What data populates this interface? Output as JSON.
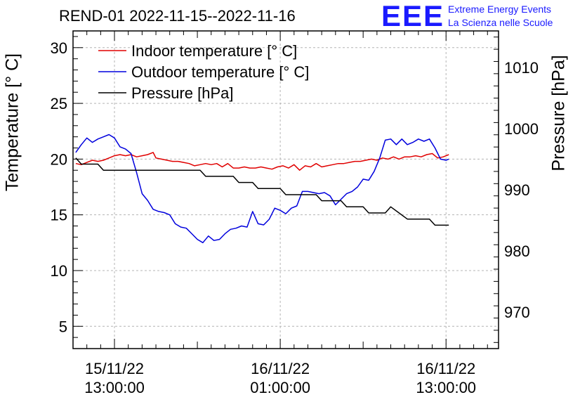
{
  "title": "REND-01 2022-11-15--2022-11-16",
  "logo": {
    "mark": "EEE",
    "line1": "Extreme Energy Events",
    "line2": "La Scienza nelle Scuole"
  },
  "colors": {
    "indoor": "#e00000",
    "outdoor": "#0000dd",
    "pressure": "#000000",
    "grid": "#b4b4b4"
  },
  "chart_data": {
    "type": "line",
    "xlabel": "",
    "ylabel": "Temperature [° C]",
    "y2label": "Pressure [hPa]",
    "x_unit": "hours since 15/11/22 13:00:00",
    "xlim": [
      -3,
      27.8
    ],
    "ylim": [
      3,
      31.5
    ],
    "y2lim": [
      964,
      1016
    ],
    "xticks": [
      {
        "x": 0,
        "line1": "15/11/22",
        "line2": "13:00:00"
      },
      {
        "x": 12,
        "line1": "16/11/22",
        "line2": "01:00:00"
      },
      {
        "x": 24,
        "line1": "16/11/22",
        "line2": "13:00:00"
      }
    ],
    "yticks": [
      "5",
      "10",
      "15",
      "20",
      "25",
      "30"
    ],
    "y2ticks": [
      "970",
      "980",
      "990",
      "1000",
      "1010"
    ],
    "legend": [
      "Indoor temperature [° C]",
      "Outdoor temperature [° C]",
      "Pressure [hPa]"
    ],
    "series": [
      {
        "name": "Indoor temperature [° C]",
        "axis": "left",
        "color": "#e00000",
        "x": [
          -2.8,
          -2.4,
          -2.0,
          -1.6,
          -1.2,
          -0.8,
          -0.4,
          0.0,
          0.4,
          0.8,
          1.2,
          1.6,
          2.0,
          2.4,
          2.8,
          3.0,
          3.4,
          3.8,
          4.2,
          4.6,
          5.0,
          5.4,
          5.8,
          6.2,
          6.6,
          7.0,
          7.4,
          7.8,
          8.2,
          8.6,
          9.0,
          9.4,
          9.8,
          10.2,
          10.6,
          11.0,
          11.4,
          11.8,
          12.2,
          12.6,
          13.0,
          13.4,
          13.8,
          14.2,
          14.6,
          15.0,
          15.4,
          15.8,
          16.2,
          16.6,
          17.0,
          17.4,
          17.8,
          18.2,
          18.6,
          19.0,
          19.4,
          19.8,
          20.2,
          20.6,
          21.0,
          21.4,
          21.8,
          22.2,
          22.6,
          23.0,
          23.4,
          23.8,
          24.2
        ],
        "values": [
          19.6,
          19.5,
          19.7,
          19.9,
          19.8,
          19.9,
          20.1,
          20.3,
          20.4,
          20.3,
          20.4,
          20.2,
          20.3,
          20.4,
          20.6,
          20.1,
          20.0,
          19.9,
          19.8,
          19.8,
          19.7,
          19.6,
          19.4,
          19.5,
          19.6,
          19.5,
          19.6,
          19.3,
          19.6,
          19.2,
          19.2,
          19.3,
          19.2,
          19.2,
          19.3,
          19.2,
          19.1,
          19.3,
          19.4,
          19.2,
          19.5,
          19.0,
          19.4,
          19.3,
          19.6,
          19.3,
          19.4,
          19.5,
          19.6,
          19.6,
          19.7,
          19.8,
          19.8,
          19.9,
          20.0,
          19.9,
          20.1,
          20.0,
          20.2,
          20.0,
          20.2,
          20.2,
          20.3,
          20.2,
          20.4,
          20.5,
          20.1,
          20.2,
          20.4
        ]
      },
      {
        "name": "Outdoor temperature [° C]",
        "axis": "left",
        "color": "#0000dd",
        "x": [
          -2.8,
          -2.4,
          -2.0,
          -1.6,
          -1.2,
          -0.8,
          -0.4,
          0.0,
          0.4,
          0.8,
          1.2,
          1.6,
          2.0,
          2.4,
          2.8,
          3.2,
          3.6,
          4.0,
          4.4,
          4.8,
          5.2,
          5.6,
          6.0,
          6.4,
          6.8,
          7.2,
          7.6,
          8.0,
          8.4,
          8.8,
          9.2,
          9.6,
          10.0,
          10.4,
          10.8,
          11.2,
          11.6,
          12.0,
          12.4,
          12.8,
          13.2,
          13.6,
          14.0,
          14.4,
          14.8,
          15.2,
          15.6,
          16.0,
          16.4,
          16.8,
          17.2,
          17.6,
          18.0,
          18.4,
          18.8,
          19.2,
          19.6,
          20.0,
          20.4,
          20.8,
          21.2,
          21.6,
          22.0,
          22.4,
          22.8,
          23.2,
          23.6,
          24.0,
          24.2
        ],
        "values": [
          20.6,
          21.3,
          21.9,
          21.5,
          21.8,
          22.0,
          22.2,
          21.9,
          21.1,
          20.9,
          20.5,
          18.8,
          16.9,
          16.3,
          15.5,
          15.3,
          15.2,
          15.0,
          14.2,
          13.9,
          13.8,
          13.3,
          12.8,
          12.5,
          13.1,
          12.7,
          12.8,
          13.3,
          13.7,
          13.8,
          14.0,
          13.9,
          15.3,
          14.2,
          14.1,
          14.6,
          15.6,
          15.4,
          15.1,
          15.6,
          15.8,
          17.1,
          17.1,
          17.0,
          16.9,
          17.0,
          16.7,
          15.9,
          16.4,
          16.9,
          17.1,
          17.5,
          18.2,
          18.1,
          18.9,
          20.1,
          21.7,
          21.8,
          21.3,
          21.8,
          21.3,
          21.5,
          21.8,
          21.6,
          21.8,
          21.0,
          20.0,
          19.9,
          20.0
        ]
      },
      {
        "name": "Pressure [hPa]",
        "axis": "right",
        "color": "#000000",
        "x": [
          -2.8,
          -2.4,
          -1.2,
          -0.8,
          4.0,
          6.2,
          6.6,
          8.6,
          9.0,
          10.0,
          10.4,
          12.0,
          12.4,
          14.6,
          15.0,
          16.4,
          16.8,
          18.0,
          18.4,
          19.6,
          20.0,
          20.6,
          21.2,
          22.8,
          23.2,
          24.2
        ],
        "values": [
          995.2,
          994.2,
          994.2,
          993.2,
          993.2,
          993.2,
          992.2,
          992.2,
          991.2,
          991.2,
          990.2,
          990.2,
          989.2,
          989.2,
          988.2,
          988.2,
          987.2,
          987.2,
          986.2,
          986.2,
          987.2,
          986.2,
          985.2,
          985.2,
          984.2,
          984.2
        ]
      }
    ]
  }
}
